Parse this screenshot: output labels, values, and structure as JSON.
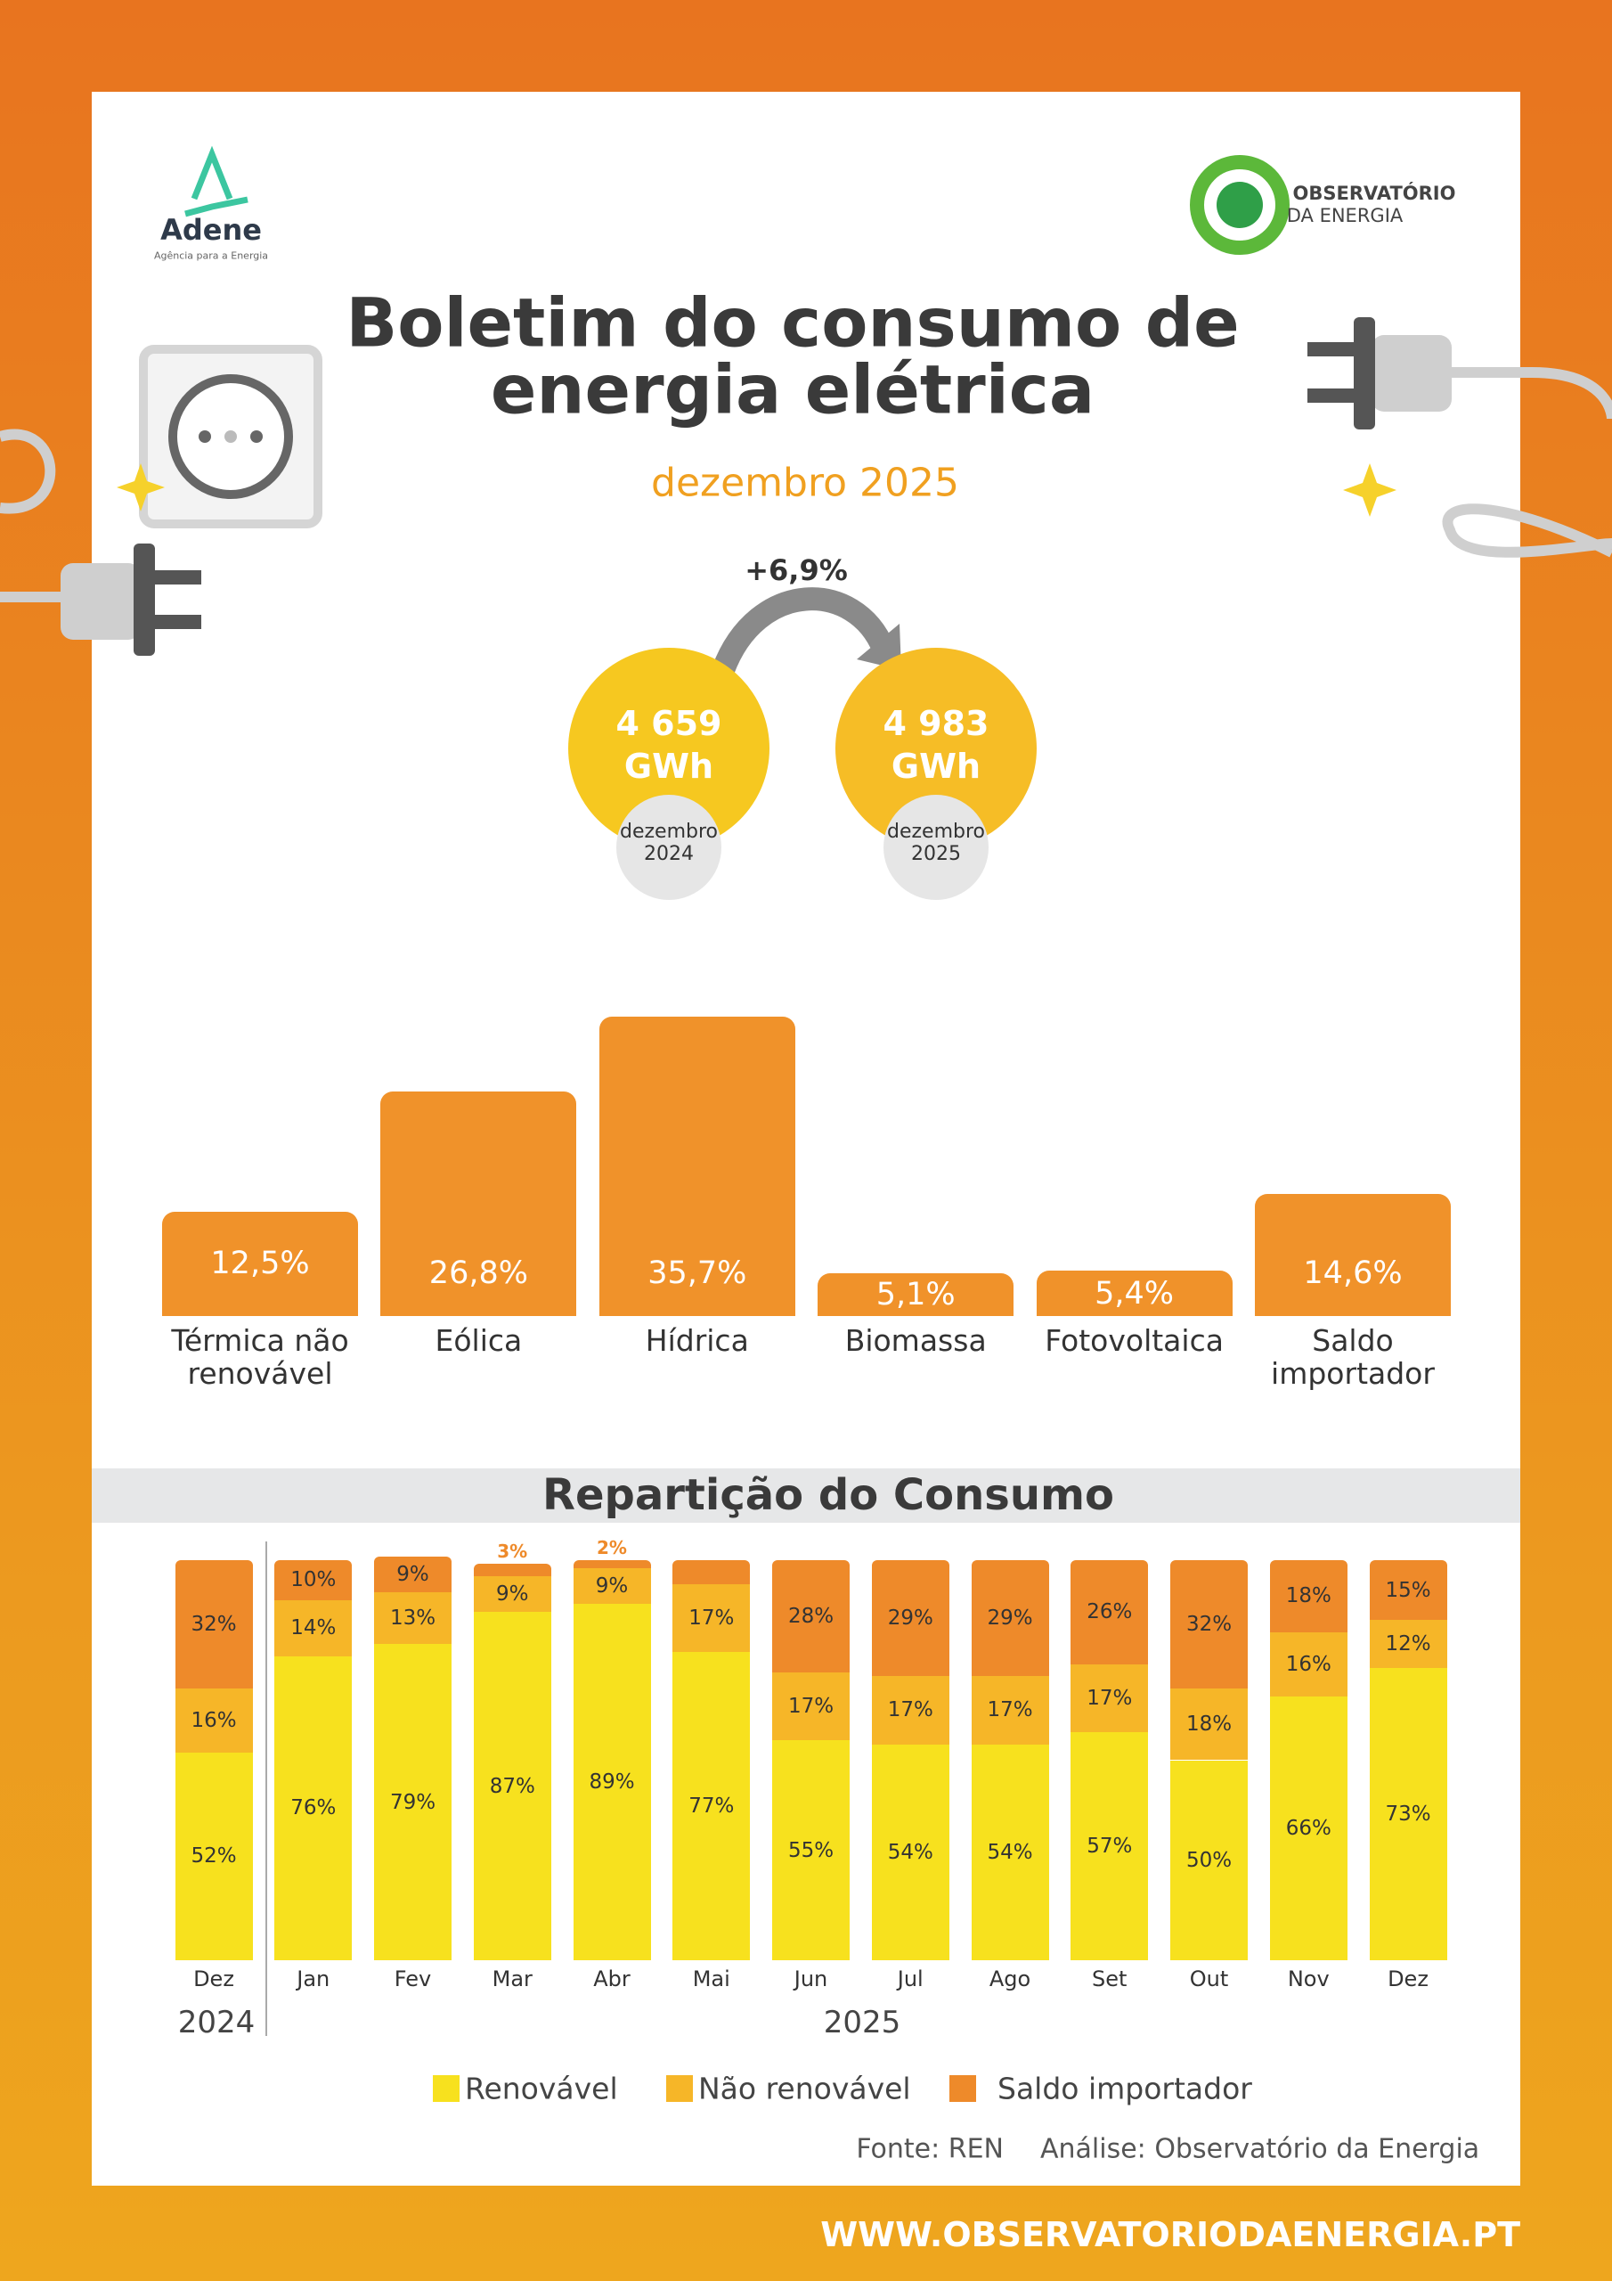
{
  "header": {
    "brand": "Adene",
    "brand_tagline": "Agência para a Energia",
    "partner_line1": "OBSERVATÓRIO",
    "partner_line2": "DA ENERGIA",
    "title_line1": "Boletim do consumo de",
    "title_line2": "energia elétrica",
    "subtitle": "dezembro 2025"
  },
  "comparison": {
    "change": "+6,9%",
    "items": [
      {
        "value": "4 659",
        "unit": "GWh",
        "period": "dezembro 2024",
        "color": "#f6c820"
      },
      {
        "value": "4 983",
        "unit": "GWh",
        "period": "dezembro 2025",
        "color": "#f6bd26"
      }
    ]
  },
  "chart_data": [
    {
      "type": "bar",
      "categories": [
        "Térmica não renovável",
        "Eólica",
        "Hídrica",
        "Biomassa",
        "Fotovoltaica",
        "Saldo importador"
      ],
      "values": [
        12.5,
        26.8,
        35.7,
        5.1,
        5.4,
        14.6
      ],
      "value_labels": [
        "12,5%",
        "26,8%",
        "35,7%",
        "5,1%",
        "5,4%",
        "14,6%"
      ],
      "color": "#f0922a"
    },
    {
      "type": "stacked_bar",
      "title": "Repartição do Consumo",
      "categories": [
        "Dez",
        "Jan",
        "Fev",
        "Mar",
        "Abr",
        "Mai",
        "Jun",
        "Jul",
        "Ago",
        "Set",
        "Out",
        "Nov",
        "Dez"
      ],
      "x_groups": [
        "2024",
        "2025"
      ],
      "series": [
        {
          "name": "Renovável",
          "color": "#f7e11e",
          "values": [
            52,
            76,
            79,
            87,
            89,
            77,
            55,
            54,
            54,
            57,
            50,
            66,
            73
          ],
          "value_labels": [
            "52%",
            "76%",
            "79%",
            "87%",
            "89%",
            "77%",
            "55%",
            "54%",
            "54%",
            "57%",
            "50%",
            "66%",
            "73%"
          ]
        },
        {
          "name": "Não renovável",
          "color": "#f6b628",
          "values": [
            16,
            14,
            13,
            9,
            9,
            17,
            17,
            17,
            17,
            17,
            18,
            16,
            12
          ],
          "value_labels": [
            "16%",
            "14%",
            "13%",
            "9%",
            "9%",
            "17%",
            "17%",
            "17%",
            "17%",
            "17%",
            "18%",
            "16%",
            "12%"
          ]
        },
        {
          "name": "Saldo importador",
          "color": "#ee8a2a",
          "values": [
            32,
            10,
            9,
            3,
            2,
            6,
            28,
            29,
            29,
            26,
            32,
            18,
            15
          ],
          "value_labels": [
            "32%",
            "10%",
            "9%",
            "3%",
            "2%",
            null,
            "28%",
            "29%",
            "29%",
            "26%",
            "32%",
            "18%",
            "15%"
          ]
        }
      ]
    }
  ],
  "footer": {
    "source": "Fonte: REN",
    "analysis": "Análise: Observatório da Energia",
    "url": "WWW.OBSERVATORIODAENERGIA.PT"
  }
}
